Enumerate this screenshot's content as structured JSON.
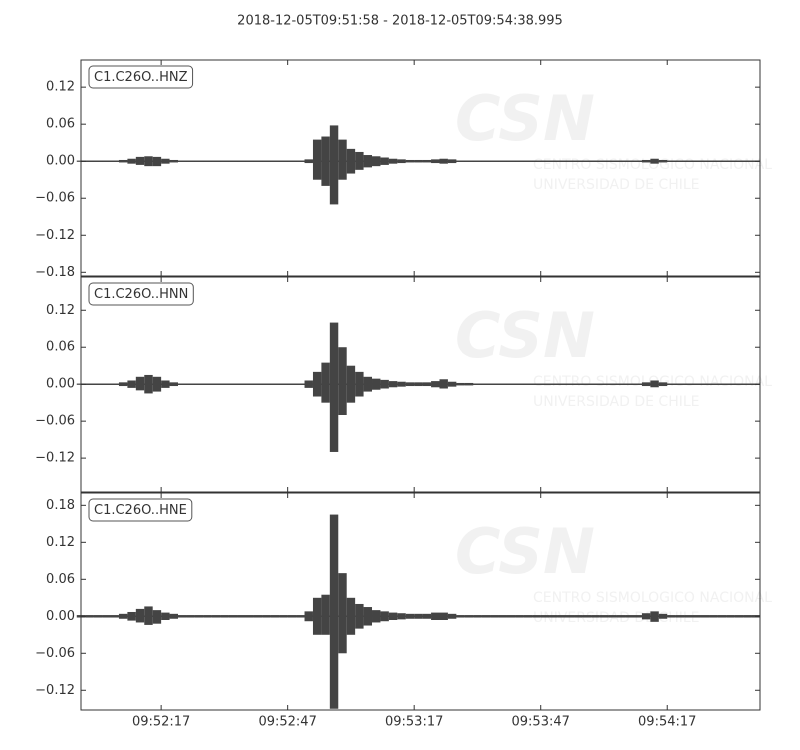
{
  "title": "2018-12-05T09:51:58  -  2018-12-05T09:54:38.995",
  "watermark": {
    "logo": "CSN",
    "lines": [
      "CENTRO SISMOLOGICO NACIONAL",
      "UNIVERSIDAD DE CHILE"
    ]
  },
  "chart_data": [
    {
      "type": "waveform",
      "label": "C1.C26O..HNZ",
      "color": "#444444",
      "x": [
        35518,
        35520,
        35522,
        35524,
        35526,
        35528,
        35530,
        35532,
        35534,
        35536,
        35538,
        35540,
        35542,
        35544,
        35546,
        35548,
        35550,
        35552,
        35554,
        35556,
        35558,
        35560,
        35562,
        35564,
        35566,
        35568,
        35570,
        35572,
        35574,
        35576,
        35578,
        35580,
        35582,
        35584,
        35586,
        35588,
        35590,
        35592,
        35594,
        35596,
        35598,
        35600,
        35602,
        35604,
        35606,
        35608,
        35610,
        35612,
        35614,
        35616,
        35618,
        35620,
        35622,
        35624,
        35626,
        35628,
        35630,
        35632,
        35634,
        35636,
        35638,
        35640,
        35642,
        35644,
        35646,
        35648,
        35650,
        35652,
        35654,
        35656,
        35658,
        35660,
        35662,
        35664,
        35666,
        35668,
        35670,
        35672,
        35674,
        35676,
        35678
      ],
      "upper": [
        0.001,
        0.001,
        0.001,
        0.001,
        0.001,
        0.002,
        0.004,
        0.007,
        0.008,
        0.007,
        0.004,
        0.002,
        0.001,
        0.001,
        0.001,
        0.001,
        0.001,
        0.001,
        0.001,
        0.001,
        0.001,
        0.001,
        0.001,
        0.001,
        0.001,
        0.001,
        0.001,
        0.003,
        0.035,
        0.04,
        0.058,
        0.035,
        0.02,
        0.015,
        0.01,
        0.008,
        0.006,
        0.004,
        0.003,
        0.002,
        0.002,
        0.002,
        0.003,
        0.004,
        0.003,
        0.001,
        0.001,
        0.001,
        0.001,
        0.001,
        0.001,
        0.001,
        0.001,
        0.001,
        0.001,
        0.001,
        0.001,
        0.001,
        0.001,
        0.001,
        0.001,
        0.001,
        0.001,
        0.001,
        0.001,
        0.001,
        0.001,
        0.002,
        0.004,
        0.002,
        0.001,
        0.001,
        0.001,
        0.001,
        0.001,
        0.001,
        0.001,
        0.001,
        0.001,
        0.001,
        0.001
      ],
      "lower": [
        -0.001,
        -0.001,
        -0.001,
        -0.001,
        -0.001,
        -0.002,
        -0.004,
        -0.006,
        -0.008,
        -0.008,
        -0.004,
        -0.002,
        -0.001,
        -0.001,
        -0.001,
        -0.001,
        -0.001,
        -0.001,
        -0.001,
        -0.001,
        -0.001,
        -0.001,
        -0.001,
        -0.001,
        -0.001,
        -0.001,
        -0.001,
        -0.003,
        -0.03,
        -0.04,
        -0.07,
        -0.03,
        -0.02,
        -0.014,
        -0.01,
        -0.008,
        -0.006,
        -0.004,
        -0.003,
        -0.002,
        -0.002,
        -0.002,
        -0.003,
        -0.004,
        -0.003,
        -0.001,
        -0.001,
        -0.001,
        -0.001,
        -0.001,
        -0.001,
        -0.001,
        -0.001,
        -0.001,
        -0.001,
        -0.001,
        -0.001,
        -0.001,
        -0.001,
        -0.001,
        -0.001,
        -0.001,
        -0.001,
        -0.001,
        -0.001,
        -0.001,
        -0.001,
        -0.002,
        -0.004,
        -0.002,
        -0.001,
        -0.001,
        -0.001,
        -0.001,
        -0.001,
        -0.001,
        -0.001,
        -0.001,
        -0.001,
        -0.001,
        -0.001
      ],
      "xlim": [
        35518,
        35678.995
      ],
      "xticks": [
        35537,
        35567,
        35597,
        35627,
        35657
      ],
      "ylim": [
        -0.186,
        0.164
      ],
      "yticks": [
        {
          "value": -0.18,
          "label": "−0.18"
        },
        {
          "value": -0.12,
          "label": "−0.12"
        },
        {
          "value": -0.06,
          "label": "−0.06"
        },
        {
          "value": 0,
          "label": "0.00"
        },
        0.06,
        0.12
      ]
    },
    {
      "type": "waveform",
      "label": "C1.C26O..HNN",
      "color": "#444444",
      "x": [
        35518,
        35520,
        35522,
        35524,
        35526,
        35528,
        35530,
        35532,
        35534,
        35536,
        35538,
        35540,
        35542,
        35544,
        35546,
        35548,
        35550,
        35552,
        35554,
        35556,
        35558,
        35560,
        35562,
        35564,
        35566,
        35568,
        35570,
        35572,
        35574,
        35576,
        35578,
        35580,
        35582,
        35584,
        35586,
        35588,
        35590,
        35592,
        35594,
        35596,
        35598,
        35600,
        35602,
        35604,
        35606,
        35608,
        35610,
        35612,
        35614,
        35616,
        35618,
        35620,
        35622,
        35624,
        35626,
        35628,
        35630,
        35632,
        35634,
        35636,
        35638,
        35640,
        35642,
        35644,
        35646,
        35648,
        35650,
        35652,
        35654,
        35656,
        35658,
        35660,
        35662,
        35664,
        35666,
        35668,
        35670,
        35672,
        35674,
        35676,
        35678
      ],
      "upper": [
        0.001,
        0.001,
        0.001,
        0.001,
        0.001,
        0.003,
        0.006,
        0.012,
        0.015,
        0.012,
        0.006,
        0.003,
        0.001,
        0.001,
        0.001,
        0.001,
        0.001,
        0.001,
        0.001,
        0.001,
        0.001,
        0.001,
        0.001,
        0.001,
        0.001,
        0.001,
        0.001,
        0.006,
        0.02,
        0.035,
        0.1,
        0.06,
        0.03,
        0.02,
        0.012,
        0.009,
        0.007,
        0.005,
        0.004,
        0.003,
        0.003,
        0.003,
        0.005,
        0.008,
        0.004,
        0.002,
        0.002,
        0.001,
        0.001,
        0.001,
        0.001,
        0.001,
        0.001,
        0.001,
        0.001,
        0.001,
        0.001,
        0.001,
        0.001,
        0.001,
        0.001,
        0.001,
        0.001,
        0.001,
        0.001,
        0.001,
        0.001,
        0.003,
        0.006,
        0.003,
        0.001,
        0.001,
        0.001,
        0.001,
        0.001,
        0.001,
        0.001,
        0.001,
        0.001,
        0.001,
        0.001
      ],
      "lower": [
        -0.001,
        -0.001,
        -0.001,
        -0.001,
        -0.001,
        -0.003,
        -0.006,
        -0.01,
        -0.015,
        -0.012,
        -0.006,
        -0.003,
        -0.001,
        -0.001,
        -0.001,
        -0.001,
        -0.001,
        -0.001,
        -0.001,
        -0.001,
        -0.001,
        -0.001,
        -0.001,
        -0.001,
        -0.001,
        -0.001,
        -0.001,
        -0.006,
        -0.02,
        -0.03,
        -0.11,
        -0.05,
        -0.03,
        -0.02,
        -0.012,
        -0.009,
        -0.007,
        -0.005,
        -0.004,
        -0.003,
        -0.003,
        -0.003,
        -0.005,
        -0.007,
        -0.004,
        -0.002,
        -0.002,
        -0.001,
        -0.001,
        -0.001,
        -0.001,
        -0.001,
        -0.001,
        -0.001,
        -0.001,
        -0.001,
        -0.001,
        -0.001,
        -0.001,
        -0.001,
        -0.001,
        -0.001,
        -0.001,
        -0.001,
        -0.001,
        -0.001,
        -0.001,
        -0.003,
        -0.005,
        -0.003,
        -0.001,
        -0.001,
        -0.001,
        -0.001,
        -0.001,
        -0.001,
        -0.001,
        -0.001,
        -0.001,
        -0.001,
        -0.001
      ],
      "xlim": [
        35518,
        35678.995
      ],
      "xticks": [
        35537,
        35567,
        35597,
        35627,
        35657
      ],
      "ylim": [
        -0.175,
        0.174
      ],
      "yticks": [
        {
          "value": -0.12,
          "label": "−0.12"
        },
        {
          "value": -0.06,
          "label": "−0.06"
        },
        {
          "value": 0,
          "label": "0.00"
        },
        0.06,
        0.12
      ]
    },
    {
      "type": "waveform",
      "label": "C1.C26O..HNE",
      "color": "#444444",
      "x": [
        35518,
        35520,
        35522,
        35524,
        35526,
        35528,
        35530,
        35532,
        35534,
        35536,
        35538,
        35540,
        35542,
        35544,
        35546,
        35548,
        35550,
        35552,
        35554,
        35556,
        35558,
        35560,
        35562,
        35564,
        35566,
        35568,
        35570,
        35572,
        35574,
        35576,
        35578,
        35580,
        35582,
        35584,
        35586,
        35588,
        35590,
        35592,
        35594,
        35596,
        35598,
        35600,
        35602,
        35604,
        35606,
        35608,
        35610,
        35612,
        35614,
        35616,
        35618,
        35620,
        35622,
        35624,
        35626,
        35628,
        35630,
        35632,
        35634,
        35636,
        35638,
        35640,
        35642,
        35644,
        35646,
        35648,
        35650,
        35652,
        35654,
        35656,
        35658,
        35660,
        35662,
        35664,
        35666,
        35668,
        35670,
        35672,
        35674,
        35676,
        35678
      ],
      "upper": [
        0.002,
        0.002,
        0.002,
        0.002,
        0.002,
        0.004,
        0.007,
        0.012,
        0.016,
        0.01,
        0.006,
        0.004,
        0.002,
        0.002,
        0.002,
        0.002,
        0.002,
        0.002,
        0.002,
        0.002,
        0.002,
        0.002,
        0.002,
        0.002,
        0.002,
        0.002,
        0.002,
        0.008,
        0.03,
        0.035,
        0.165,
        0.07,
        0.03,
        0.02,
        0.015,
        0.01,
        0.008,
        0.006,
        0.005,
        0.004,
        0.004,
        0.004,
        0.006,
        0.006,
        0.004,
        0.002,
        0.002,
        0.002,
        0.002,
        0.002,
        0.002,
        0.002,
        0.002,
        0.002,
        0.002,
        0.002,
        0.002,
        0.002,
        0.002,
        0.002,
        0.002,
        0.002,
        0.002,
        0.002,
        0.002,
        0.002,
        0.002,
        0.005,
        0.008,
        0.004,
        0.002,
        0.002,
        0.002,
        0.002,
        0.002,
        0.002,
        0.002,
        0.002,
        0.002,
        0.002,
        0.002
      ],
      "lower": [
        -0.002,
        -0.002,
        -0.002,
        -0.002,
        -0.002,
        -0.004,
        -0.007,
        -0.01,
        -0.014,
        -0.012,
        -0.006,
        -0.004,
        -0.002,
        -0.002,
        -0.002,
        -0.002,
        -0.002,
        -0.002,
        -0.002,
        -0.002,
        -0.002,
        -0.002,
        -0.002,
        -0.002,
        -0.002,
        -0.002,
        -0.002,
        -0.008,
        -0.03,
        -0.03,
        -0.15,
        -0.06,
        -0.03,
        -0.02,
        -0.015,
        -0.01,
        -0.008,
        -0.006,
        -0.005,
        -0.004,
        -0.004,
        -0.004,
        -0.006,
        -0.006,
        -0.004,
        -0.002,
        -0.002,
        -0.002,
        -0.002,
        -0.002,
        -0.002,
        -0.002,
        -0.002,
        -0.002,
        -0.002,
        -0.002,
        -0.002,
        -0.002,
        -0.002,
        -0.002,
        -0.002,
        -0.002,
        -0.002,
        -0.002,
        -0.002,
        -0.002,
        -0.002,
        -0.005,
        -0.009,
        -0.004,
        -0.002,
        -0.002,
        -0.002,
        -0.002,
        -0.002,
        -0.002,
        -0.002,
        -0.002,
        -0.002,
        -0.002,
        -0.002
      ],
      "xlim": [
        35518,
        35678.995
      ],
      "xticks": [
        {
          "value": 35537,
          "label": "09:52:17"
        },
        {
          "value": 35567,
          "label": "09:52:47"
        },
        {
          "value": 35597,
          "label": "09:53:17"
        },
        {
          "value": 35627,
          "label": "09:53:47"
        },
        {
          "value": 35657,
          "label": "09:54:17"
        }
      ],
      "ylim": [
        -0.152,
        0.2
      ],
      "yticks": [
        {
          "value": -0.12,
          "label": "−0.12"
        },
        {
          "value": -0.06,
          "label": "−0.06"
        },
        {
          "value": 0,
          "label": "0.00"
        },
        0.06,
        0.12,
        0.18
      ]
    }
  ]
}
